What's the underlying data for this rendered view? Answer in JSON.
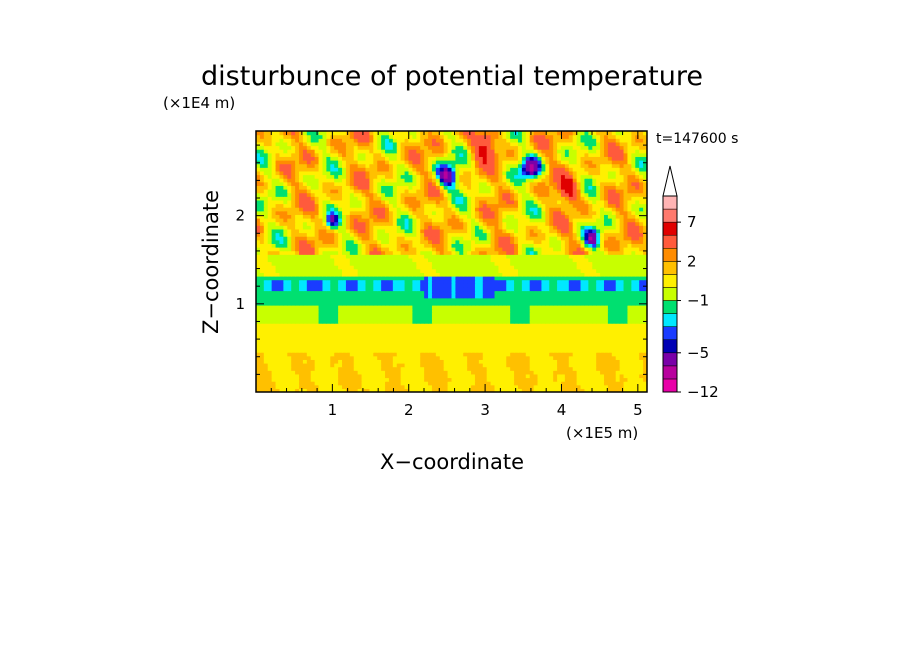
{
  "chart_data": {
    "type": "heatmap",
    "title": "disturbunce of potential temperature",
    "time_label": "t=147600 s",
    "xlabel": "X−coordinate",
    "ylabel": "Z−coordinate",
    "x_scale_label": "(×1E5 m)",
    "y_scale_label": "(×1E4 m)",
    "xlim": [
      0,
      5.12
    ],
    "ylim": [
      0,
      2.96
    ],
    "x_ticks": [
      {
        "value": 1,
        "label": "1"
      },
      {
        "value": 2,
        "label": "2"
      },
      {
        "value": 3,
        "label": "3"
      },
      {
        "value": 4,
        "label": "4"
      },
      {
        "value": 5,
        "label": "5"
      }
    ],
    "y_ticks": [
      {
        "value": 1,
        "label": "1"
      },
      {
        "value": 2,
        "label": "2"
      }
    ],
    "colorbar": {
      "levels": [
        -12,
        -9,
        -7,
        -5,
        -4,
        -3,
        -2,
        -1,
        0,
        1,
        2,
        3,
        5,
        7,
        9,
        11
      ],
      "colors": [
        "#e800a8",
        "#b8009e",
        "#7a00a8",
        "#0000b4",
        "#1a3cff",
        "#00e8ff",
        "#00e070",
        "#c8ff00",
        "#fff000",
        "#ffc000",
        "#ff8c00",
        "#ff5a3c",
        "#e00000",
        "#ff7a6e",
        "#ffb4b4"
      ],
      "extend_max": true,
      "tick_labels": [
        {
          "level": 7,
          "label": "7"
        },
        {
          "level": 2,
          "label": "2"
        },
        {
          "level": -1,
          "label": "−1"
        },
        {
          "level": -5,
          "label": "−5"
        },
        {
          "level": -12,
          "label": "−12"
        }
      ]
    },
    "field_summary": {
      "bands_by_height": [
        {
          "z_range": [
            0.0,
            0.45
          ],
          "value_range": [
            0.5,
            1.5
          ]
        },
        {
          "z_range": [
            0.45,
            0.8
          ],
          "value_range": [
            0.5,
            1.5
          ]
        },
        {
          "z_range": [
            0.8,
            1.0
          ],
          "value_range": [
            -1.5,
            -0.5
          ]
        },
        {
          "z_range": [
            1.0,
            1.3
          ],
          "value_range": [
            -4,
            -1
          ]
        },
        {
          "z_range": [
            1.3,
            1.55
          ],
          "value_range": [
            -1,
            0.5
          ]
        },
        {
          "z_range": [
            1.55,
            2.96
          ],
          "value_range": [
            -7,
            5
          ]
        }
      ],
      "extremes": [
        {
          "x": 2.5,
          "z": 2.45,
          "value": -6
        },
        {
          "x": 3.6,
          "z": 2.55,
          "value": -6
        },
        {
          "x": 4.4,
          "z": 1.75,
          "value": -5
        },
        {
          "x": 4.1,
          "z": 2.3,
          "value": 5
        }
      ]
    }
  }
}
